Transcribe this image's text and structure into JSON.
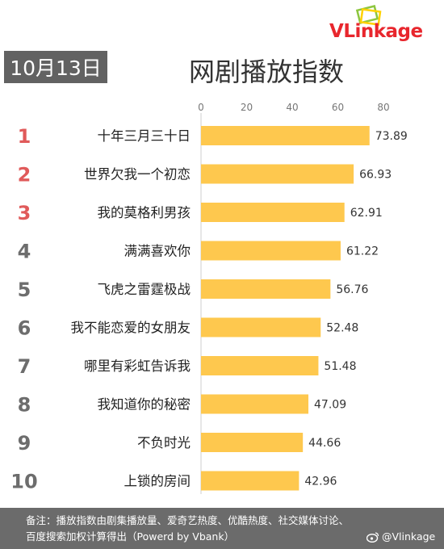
{
  "brand": {
    "logo_v": "V",
    "logo_rest": "Linkage",
    "colors": {
      "red": "#e8262d",
      "green": "#8dc63f",
      "yellow": "#ffd200"
    }
  },
  "date_badge": "10月13日",
  "colors": {
    "bar": "#fec84e",
    "rank_top": "#e05a5a",
    "rank_other": "#6d6d6d",
    "badge_bg": "#626262",
    "footer_bg": "#6b6b6b"
  },
  "chart_data": {
    "type": "bar",
    "orientation": "horizontal",
    "title": "网剧播放指数",
    "xlim": [
      0,
      80
    ],
    "x_ticks": [
      0,
      20,
      40,
      60,
      80
    ],
    "xlabel": "",
    "ylabel": "",
    "grid": false,
    "legend": "none",
    "categories": [
      "十年三月三十日",
      "世界欠我一个初恋",
      "我的莫格利男孩",
      "满满喜欢你",
      "飞虎之雷霆极战",
      "我不能恋爱的女朋友",
      "哪里有彩虹告诉我",
      "我知道你的秘密",
      "不负时光",
      "上锁的房间"
    ],
    "ranks": [
      "1",
      "2",
      "3",
      "4",
      "5",
      "6",
      "7",
      "8",
      "9",
      "10"
    ],
    "values": [
      73.89,
      66.93,
      62.91,
      61.22,
      56.76,
      52.48,
      51.48,
      47.09,
      44.66,
      42.96
    ],
    "value_labels": [
      "73.89",
      "66.93",
      "62.91",
      "61.22",
      "56.76",
      "52.48",
      "51.48",
      "47.09",
      "44.66",
      "42.96"
    ]
  },
  "footer": {
    "note_line1": "备注：播放指数由剧集播放量、爱奇艺热度、优酷热度、社交媒体讨论、",
    "note_line2": "百度搜索加权计算得出（Powerd by Vbank）",
    "weibo_handle": "@Vlinkage"
  }
}
